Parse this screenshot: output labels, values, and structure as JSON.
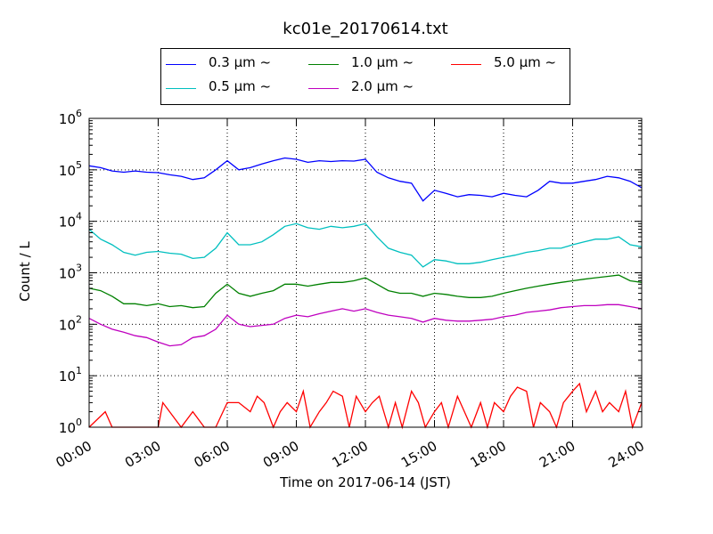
{
  "chart_data": {
    "type": "line",
    "title": "kc01e_20170614.txt",
    "xlabel": "Time on 2017-06-14 (JST)",
    "ylabel": "Count / L",
    "yscale": "log",
    "ylim": [
      1,
      1000000
    ],
    "xlim": [
      0,
      24
    ],
    "x_ticks": [
      "00:00",
      "03:00",
      "06:00",
      "09:00",
      "12:00",
      "15:00",
      "18:00",
      "21:00",
      "24:00"
    ],
    "y_ticks": [
      {
        "base": "10",
        "exp": "0"
      },
      {
        "base": "10",
        "exp": "1"
      },
      {
        "base": "10",
        "exp": "2"
      },
      {
        "base": "10",
        "exp": "3"
      },
      {
        "base": "10",
        "exp": "4"
      },
      {
        "base": "10",
        "exp": "5"
      },
      {
        "base": "10",
        "exp": "6"
      }
    ],
    "grid": true,
    "legend_position": "top",
    "series": [
      {
        "name": "0.3 μm ~",
        "color": "#0000ff",
        "x": [
          0,
          0.5,
          1,
          1.5,
          2,
          2.5,
          3,
          3.5,
          4,
          4.5,
          5,
          5.5,
          6,
          6.5,
          7,
          7.5,
          8,
          8.5,
          9,
          9.5,
          10,
          10.5,
          11,
          11.5,
          12,
          12.5,
          13,
          13.5,
          14,
          14.5,
          15,
          15.5,
          16,
          16.5,
          17,
          17.5,
          18,
          18.5,
          19,
          19.5,
          20,
          20.5,
          21,
          21.5,
          22,
          22.5,
          23,
          23.5,
          24
        ],
        "y": [
          120000,
          110000,
          95000,
          90000,
          95000,
          90000,
          88000,
          80000,
          75000,
          65000,
          70000,
          100000,
          150000,
          100000,
          110000,
          130000,
          150000,
          170000,
          160000,
          140000,
          150000,
          145000,
          150000,
          148000,
          160000,
          90000,
          70000,
          60000,
          55000,
          25000,
          40000,
          35000,
          30000,
          33000,
          32000,
          30000,
          35000,
          32000,
          30000,
          40000,
          60000,
          55000,
          55000,
          60000,
          65000,
          75000,
          70000,
          60000,
          45000
        ]
      },
      {
        "name": "0.5 μm ~",
        "color": "#00bfbf",
        "x": [
          0,
          0.5,
          1,
          1.5,
          2,
          2.5,
          3,
          3.5,
          4,
          4.5,
          5,
          5.5,
          6,
          6.5,
          7,
          7.5,
          8,
          8.5,
          9,
          9.5,
          10,
          10.5,
          11,
          11.5,
          12,
          12.5,
          13,
          13.5,
          14,
          14.5,
          15,
          15.5,
          16,
          16.5,
          17,
          17.5,
          18,
          18.5,
          19,
          19.5,
          20,
          20.5,
          21,
          21.5,
          22,
          22.5,
          23,
          23.5,
          24
        ],
        "y": [
          7000,
          4500,
          3500,
          2500,
          2200,
          2500,
          2600,
          2400,
          2300,
          1900,
          2000,
          3000,
          6000,
          3500,
          3500,
          4000,
          5500,
          8000,
          9000,
          7500,
          7000,
          8000,
          7500,
          8000,
          9000,
          5000,
          3000,
          2500,
          2200,
          1300,
          1800,
          1700,
          1500,
          1500,
          1600,
          1800,
          2000,
          2200,
          2500,
          2700,
          3000,
          3000,
          3500,
          4000,
          4500,
          4500,
          5000,
          3500,
          3200
        ]
      },
      {
        "name": "1.0 μm ~",
        "color": "#008000",
        "x": [
          0,
          0.5,
          1,
          1.5,
          2,
          2.5,
          3,
          3.5,
          4,
          4.5,
          5,
          5.5,
          6,
          6.5,
          7,
          7.5,
          8,
          8.5,
          9,
          9.5,
          10,
          10.5,
          11,
          11.5,
          12,
          12.5,
          13,
          13.5,
          14,
          14.5,
          15,
          15.5,
          16,
          16.5,
          17,
          17.5,
          18,
          18.5,
          19,
          19.5,
          20,
          20.5,
          21,
          21.5,
          22,
          22.5,
          23,
          23.5,
          24
        ],
        "y": [
          500,
          450,
          350,
          250,
          250,
          230,
          250,
          220,
          230,
          210,
          220,
          400,
          600,
          400,
          350,
          400,
          450,
          600,
          600,
          550,
          600,
          650,
          650,
          700,
          800,
          600,
          450,
          400,
          400,
          350,
          400,
          380,
          350,
          330,
          330,
          350,
          400,
          450,
          500,
          550,
          600,
          650,
          700,
          750,
          800,
          850,
          900,
          700,
          650
        ]
      },
      {
        "name": "2.0 μm ~",
        "color": "#bf00bf",
        "x": [
          0,
          0.5,
          1,
          1.5,
          2,
          2.5,
          3,
          3.5,
          4,
          4.5,
          5,
          5.5,
          6,
          6.5,
          7,
          7.5,
          8,
          8.5,
          9,
          9.5,
          10,
          10.5,
          11,
          11.5,
          12,
          12.5,
          13,
          13.5,
          14,
          14.5,
          15,
          15.5,
          16,
          16.5,
          17,
          17.5,
          18,
          18.5,
          19,
          19.5,
          20,
          20.5,
          21,
          21.5,
          22,
          22.5,
          23,
          23.5,
          24
        ],
        "y": [
          130,
          100,
          80,
          70,
          60,
          55,
          45,
          38,
          40,
          55,
          60,
          80,
          150,
          100,
          90,
          95,
          100,
          130,
          150,
          140,
          160,
          180,
          200,
          180,
          200,
          170,
          150,
          140,
          130,
          110,
          130,
          120,
          115,
          115,
          120,
          125,
          140,
          150,
          170,
          180,
          190,
          210,
          220,
          230,
          230,
          240,
          240,
          220,
          200
        ]
      },
      {
        "name": "5.0 μm ~",
        "color": "#ff0000",
        "x": [
          0,
          0.7,
          1,
          2,
          3,
          3.2,
          4,
          4.5,
          5,
          5.5,
          6,
          6.5,
          7,
          7.3,
          7.6,
          8,
          8.3,
          8.6,
          9,
          9.3,
          9.6,
          10,
          10.3,
          10.6,
          11,
          11.3,
          11.6,
          12,
          12.3,
          12.6,
          13,
          13.3,
          13.6,
          14,
          14.3,
          14.6,
          15,
          15.3,
          15.6,
          16,
          16.3,
          16.6,
          17,
          17.3,
          17.6,
          18,
          18.3,
          18.6,
          19,
          19.3,
          19.6,
          20,
          20.3,
          20.6,
          21,
          21.3,
          21.6,
          22,
          22.3,
          22.6,
          23,
          23.3,
          23.6,
          24
        ],
        "y": [
          1,
          2,
          1,
          1,
          1,
          3,
          1,
          2,
          1,
          1,
          3,
          3,
          2,
          4,
          3,
          1,
          2,
          3,
          2,
          5,
          1,
          2,
          3,
          5,
          4,
          1,
          4,
          2,
          3,
          4,
          1,
          3,
          1,
          5,
          3,
          1,
          2,
          3,
          1,
          4,
          2,
          1,
          3,
          1,
          3,
          2,
          4,
          6,
          5,
          1,
          3,
          2,
          1,
          3,
          5,
          7,
          2,
          5,
          2,
          3,
          2,
          5,
          1,
          3
        ]
      }
    ]
  }
}
